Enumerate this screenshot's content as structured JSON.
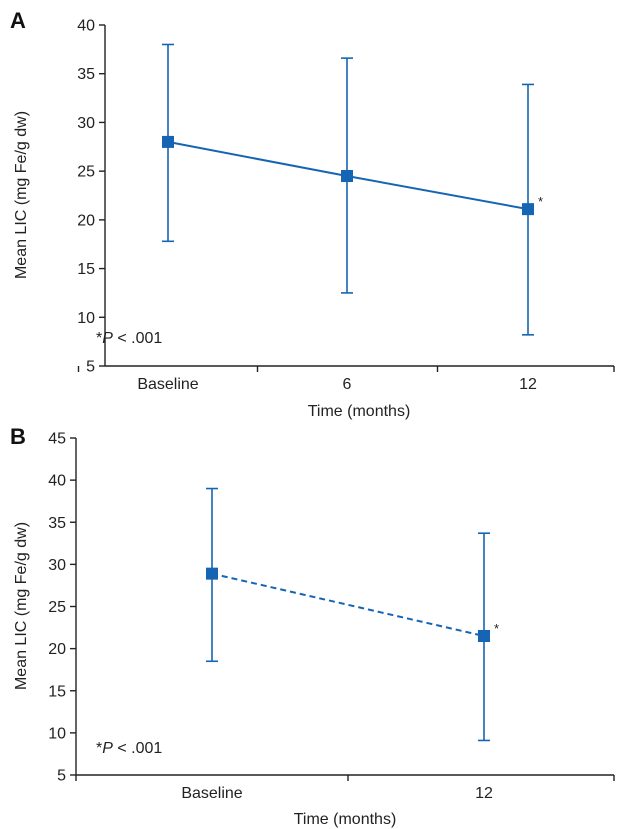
{
  "colors": {
    "series": "#1565b4",
    "axis": "#222222",
    "text": "#222222"
  },
  "chart_data": [
    {
      "type": "line",
      "panel_label": "A",
      "xlabel": "Time (months)",
      "ylabel": "Mean LIC (mg Fe/g dw)",
      "categories": [
        "Baseline",
        "6",
        "12"
      ],
      "ylim": [
        5,
        40
      ],
      "yticks": [
        5,
        10,
        15,
        20,
        25,
        30,
        35,
        40
      ],
      "line_style": "solid",
      "series": [
        {
          "values": [
            28.0,
            24.5,
            21.1
          ],
          "error_low": [
            17.8,
            12.5,
            8.2
          ],
          "error_high": [
            38.0,
            36.6,
            33.9
          ],
          "marker": "square"
        }
      ],
      "significance": [
        "",
        "",
        "*"
      ],
      "annotation_prefix": "*",
      "annotation_italic": "P",
      "annotation_suffix": " < .001",
      "grid": false
    },
    {
      "type": "line",
      "panel_label": "B",
      "xlabel": "Time (months)",
      "ylabel": "Mean LIC (mg Fe/g dw)",
      "categories": [
        "Baseline",
        "12"
      ],
      "ylim": [
        5,
        45
      ],
      "yticks": [
        5,
        10,
        15,
        20,
        25,
        30,
        35,
        40,
        45
      ],
      "line_style": "dashed",
      "series": [
        {
          "values": [
            28.9,
            21.5
          ],
          "error_low": [
            18.5,
            9.1
          ],
          "error_high": [
            39.0,
            33.7
          ],
          "marker": "square"
        }
      ],
      "significance": [
        "",
        "*"
      ],
      "annotation_prefix": "*",
      "annotation_italic": "P",
      "annotation_suffix": " < .001",
      "grid": false
    }
  ]
}
